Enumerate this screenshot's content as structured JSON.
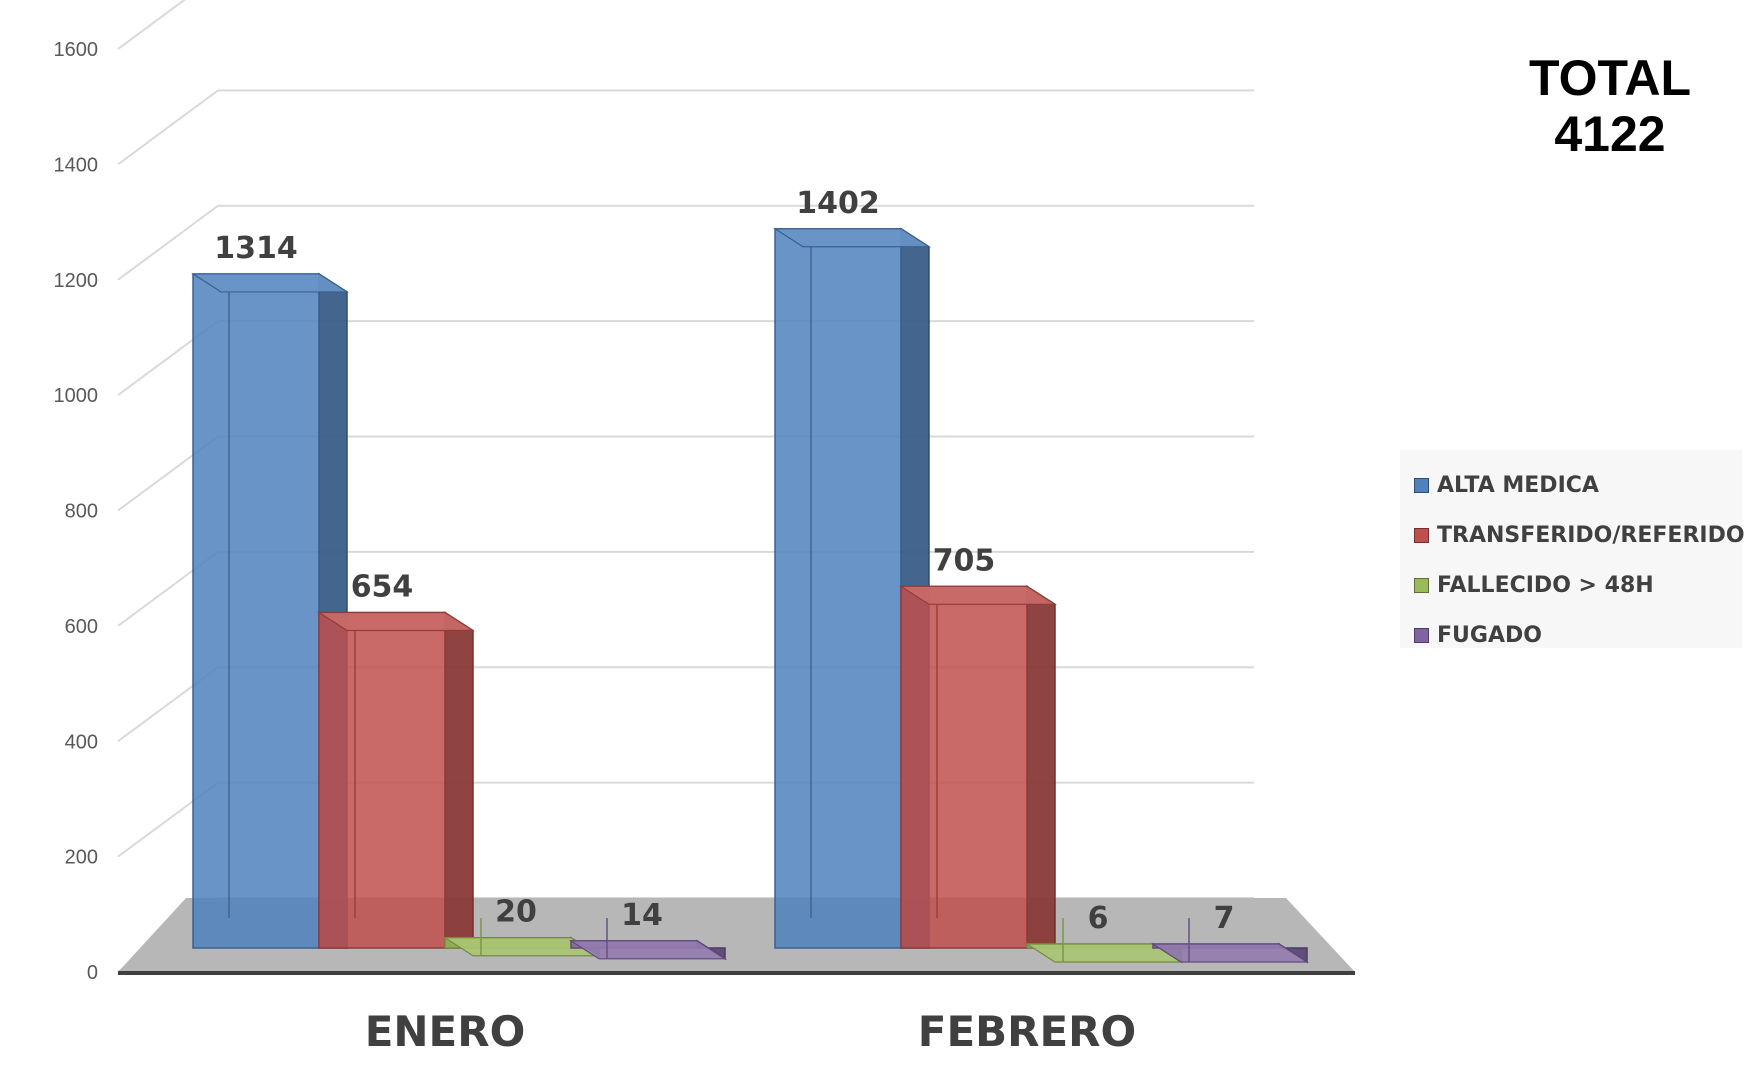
{
  "chart_data": {
    "type": "bar",
    "categories": [
      "ENERO",
      "FEBRERO"
    ],
    "series": [
      {
        "name": "ALTA MEDICA",
        "values": [
          1314,
          1402
        ],
        "color": "#4f81bd"
      },
      {
        "name": "TRANSFERIDO/REFERIDO",
        "values": [
          654,
          705
        ],
        "color": "#c0504d"
      },
      {
        "name": "FALLECIDO > 48H",
        "values": [
          20,
          6
        ],
        "color": "#9bbb59"
      },
      {
        "name": "FUGADO",
        "values": [
          14,
          7
        ],
        "color": "#8064a2"
      }
    ],
    "data_labels": [
      [
        "1314",
        "654",
        "20",
        "14"
      ],
      [
        "1402",
        "705",
        "6",
        "7"
      ]
    ],
    "yticks": [
      "0",
      "200",
      "400",
      "600",
      "800",
      "1000",
      "1200",
      "1400",
      "1600"
    ],
    "ylim": [
      0,
      1600
    ],
    "style": "3d-clustered-column",
    "gridlines": true,
    "legend_position": "right",
    "annotation": {
      "line1": "TOTAL",
      "line2": "4122"
    }
  }
}
